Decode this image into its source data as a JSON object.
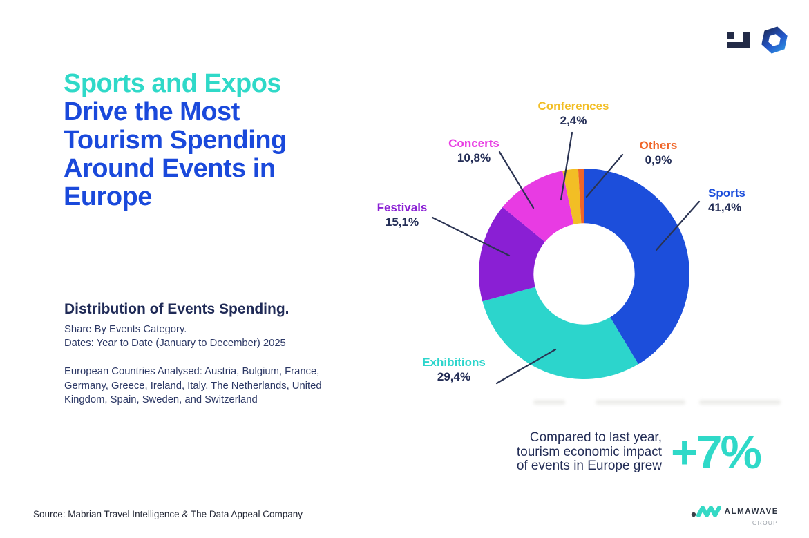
{
  "header": {
    "title_teal": "Sports and Expos",
    "title_blue_lines": [
      "Drive the Most",
      "Tourism Spending",
      "Around Events in",
      "Europe"
    ]
  },
  "description": {
    "heading": "Distribution of Events Spending.",
    "subline1": "Share By Events Category.",
    "subline2": "Dates: Year to Date (January to December) 2025",
    "countries": "European Countries Analysed: Austria, Bulgium, France, Germany, Greece, Ireland, Italy, The Netherlands, United Kingdom, Spain, Sweden, and Switzerland"
  },
  "chart_data": {
    "type": "pie",
    "subtype": "donut",
    "direction": "clockwise",
    "start_angle_deg": 0,
    "inner_radius_ratio": 0.48,
    "legend_position": "callout-labels",
    "title": "Distribution of Events Spending. Share By Events Category.",
    "unit": "%",
    "categories": [
      "Sports",
      "Exhibitions",
      "Festivals",
      "Concerts",
      "Conferences",
      "Others"
    ],
    "values": [
      41.4,
      29.4,
      15.1,
      10.8,
      2.4,
      0.9
    ],
    "slices": [
      {
        "label": "Sports",
        "value": 41.4,
        "value_label": "41,4%",
        "color": "#1C4EDB"
      },
      {
        "label": "Exhibitions",
        "value": 29.4,
        "value_label": "29,4%",
        "color": "#2CD5CC"
      },
      {
        "label": "Festivals",
        "value": 15.1,
        "value_label": "15,1%",
        "color": "#8A1FD4"
      },
      {
        "label": "Concerts",
        "value": 10.8,
        "value_label": "10,8%",
        "color": "#E83BE3"
      },
      {
        "label": "Conferences",
        "value": 2.4,
        "value_label": "2,4%",
        "color": "#F2BE25"
      },
      {
        "label": "Others",
        "value": 0.9,
        "value_label": "0,9%",
        "color": "#F06528"
      }
    ]
  },
  "highlight": {
    "line1": "Compared to last year,",
    "line2": "tourism economic impact",
    "line3": "of events in Europe grew",
    "stat": "+7%"
  },
  "footer": {
    "source": "Source: Mabrian Travel Intelligence & The Data Appeal Company"
  },
  "branding": {
    "almawave_name": "ALMAWAVE",
    "almawave_sub": "GROUP"
  },
  "colors": {
    "accent_teal": "#2FD9C8",
    "accent_blue": "#1A49DB",
    "navy_text": "#232D56",
    "leader_line": "#2A3352"
  }
}
